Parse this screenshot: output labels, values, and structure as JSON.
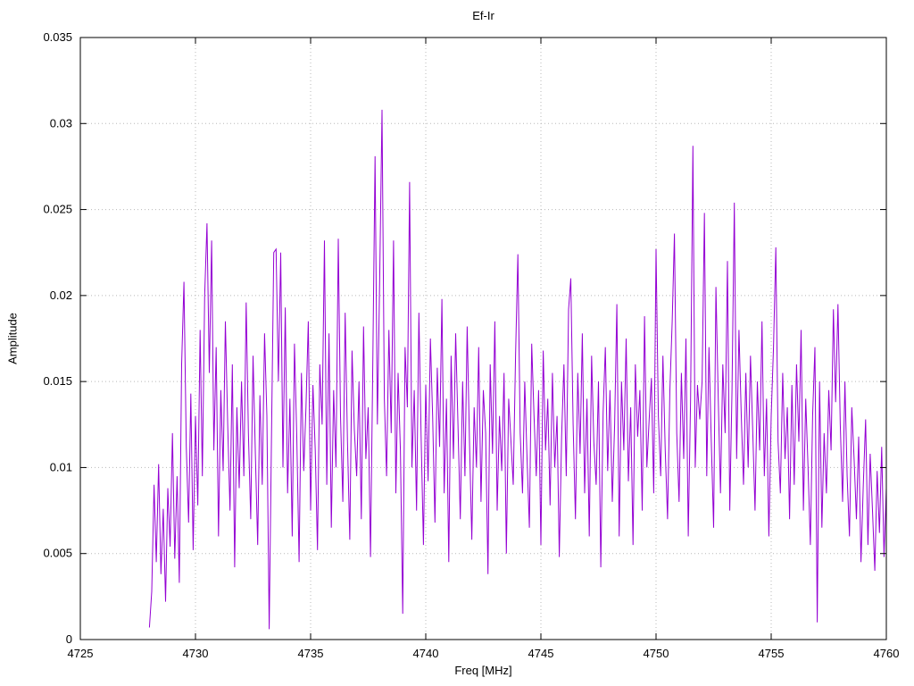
{
  "chart": {
    "title": "Ef-Ir",
    "xlabel": "Freq [MHz]",
    "ylabel": "Amplitude",
    "line_color": "#9400d3",
    "grid_color": "#b8b8b8",
    "border_color": "#000000",
    "xlim": [
      4725,
      4760
    ],
    "ylim": [
      0,
      0.035
    ],
    "x_ticks": [
      4725,
      4730,
      4735,
      4740,
      4745,
      4750,
      4755,
      4760
    ],
    "x_tick_labels": [
      "4725",
      "4730",
      "4735",
      "4740",
      "4745",
      "4750",
      "4755",
      "4760"
    ],
    "y_ticks": [
      0,
      0.005,
      0.01,
      0.015,
      0.02,
      0.025,
      0.03,
      0.035
    ],
    "y_tick_labels": [
      "0",
      "0.005",
      "0.01",
      "0.015",
      "0.02",
      "0.025",
      "0.03",
      "0.035"
    ]
  },
  "chart_data": {
    "type": "line",
    "title": "Ef-Ir",
    "xlabel": "Freq [MHz]",
    "ylabel": "Amplitude",
    "xlim": [
      4725,
      4760
    ],
    "ylim": [
      0,
      0.035
    ],
    "grid": true,
    "legend": false,
    "x_start": 4728.0,
    "x_step": 0.1,
    "values_scale": 0.0001,
    "values": [
      7,
      28,
      90,
      45,
      102,
      38,
      76,
      22,
      88,
      54,
      120,
      47,
      95,
      33,
      160,
      208,
      112,
      68,
      143,
      52,
      130,
      78,
      180,
      95,
      200,
      242,
      155,
      232,
      110,
      170,
      60,
      145,
      98,
      185,
      125,
      75,
      160,
      42,
      135,
      88,
      150,
      95,
      196,
      120,
      70,
      165,
      108,
      55,
      142,
      90,
      178,
      130,
      6,
      115,
      225,
      227,
      150,
      225,
      100,
      193,
      85,
      140,
      60,
      172,
      118,
      45,
      155,
      98,
      135,
      185,
      75,
      148,
      110,
      52,
      160,
      125,
      232,
      90,
      178,
      65,
      145,
      100,
      233,
      130,
      80,
      190,
      115,
      58,
      168,
      122,
      95,
      150,
      70,
      182,
      105,
      135,
      48,
      162,
      281,
      125,
      210,
      308,
      140,
      95,
      180,
      120,
      232,
      85,
      155,
      110,
      15,
      170,
      135,
      266,
      100,
      145,
      75,
      190,
      118,
      55,
      148,
      92,
      175,
      130,
      68,
      158,
      112,
      198,
      85,
      140,
      45,
      165,
      105,
      178,
      125,
      70,
      150,
      95,
      182,
      115,
      58,
      135,
      100,
      170,
      80,
      145,
      120,
      38,
      160,
      108,
      185,
      75,
      130,
      98,
      155,
      50,
      140,
      115,
      90,
      165,
      224,
      120,
      85,
      150,
      105,
      65,
      172,
      130,
      95,
      145,
      55,
      168,
      110,
      140,
      78,
      155,
      100,
      130,
      48,
      118,
      160,
      95,
      192,
      210,
      125,
      70,
      155,
      108,
      178,
      85,
      140,
      60,
      165,
      115,
      90,
      150,
      42,
      132,
      170,
      98,
      145,
      80,
      125,
      195,
      60,
      150,
      110,
      175,
      92,
      135,
      55,
      160,
      118,
      145,
      75,
      188,
      100,
      128,
      152,
      85,
      227,
      130,
      95,
      165,
      110,
      70,
      145,
      185,
      236,
      120,
      80,
      155,
      105,
      175,
      60,
      140,
      287,
      100,
      148,
      128,
      150,
      248,
      95,
      170,
      115,
      65,
      205,
      140,
      85,
      160,
      120,
      220,
      75,
      145,
      254,
      105,
      180,
      130,
      90,
      155,
      100,
      165,
      120,
      75,
      150,
      110,
      185,
      95,
      140,
      60,
      130,
      170,
      228,
      115,
      85,
      155,
      105,
      135,
      70,
      148,
      90,
      160,
      115,
      180,
      75,
      140,
      100,
      55,
      130,
      170,
      10,
      150,
      65,
      120,
      85,
      145,
      110,
      192,
      138,
      195,
      125,
      80,
      150,
      95,
      60,
      135,
      105,
      70,
      118,
      45,
      90,
      128,
      55,
      108,
      75,
      40,
      98,
      62,
      112,
      48,
      88
    ]
  }
}
